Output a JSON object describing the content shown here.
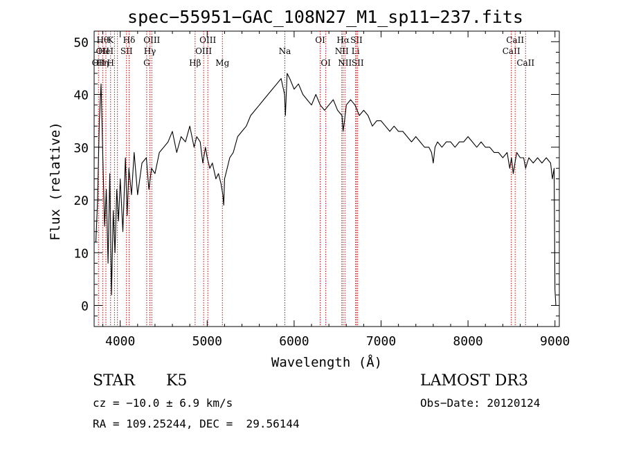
{
  "chart_data": {
    "type": "line",
    "title": "spec−55951−GAC_108N27_M1_sp11−237.fits",
    "xlabel": "Wavelength (Å)",
    "ylabel": "Flux (relative)",
    "xlim": [
      3700,
      9050
    ],
    "ylim": [
      -4,
      52
    ],
    "xticks": [
      4000,
      5000,
      6000,
      7000,
      8000,
      9000
    ],
    "xtick_labels": [
      "4000",
      "5000",
      "6000",
      "7000",
      "8000",
      "9000"
    ],
    "yticks": [
      0,
      10,
      20,
      30,
      40,
      50
    ],
    "ytick_labels": [
      "0",
      "10",
      "20",
      "30",
      "40",
      "50"
    ],
    "grid": false,
    "series": [
      {
        "color": "#000000",
        "x": [
          3720,
          3740,
          3760,
          3780,
          3800,
          3820,
          3840,
          3860,
          3880,
          3900,
          3920,
          3940,
          3960,
          3980,
          4000,
          4030,
          4060,
          4080,
          4100,
          4130,
          4160,
          4200,
          4250,
          4300,
          4330,
          4360,
          4400,
          4450,
          4500,
          4550,
          4600,
          4650,
          4700,
          4750,
          4800,
          4850,
          4880,
          4920,
          4950,
          4980,
          5000,
          5030,
          5060,
          5100,
          5130,
          5160,
          5180,
          5190,
          5200,
          5230,
          5260,
          5300,
          5350,
          5400,
          5450,
          5500,
          5550,
          5600,
          5650,
          5700,
          5750,
          5800,
          5850,
          5890,
          5900,
          5920,
          5950,
          6000,
          6050,
          6100,
          6150,
          6200,
          6250,
          6300,
          6350,
          6400,
          6450,
          6500,
          6550,
          6563,
          6580,
          6600,
          6650,
          6700,
          6750,
          6800,
          6850,
          6900,
          6950,
          7000,
          7050,
          7100,
          7150,
          7200,
          7250,
          7300,
          7350,
          7400,
          7450,
          7500,
          7550,
          7580,
          7600,
          7620,
          7650,
          7700,
          7750,
          7800,
          7850,
          7900,
          7950,
          8000,
          8050,
          8100,
          8150,
          8200,
          8250,
          8300,
          8350,
          8400,
          8450,
          8480,
          8500,
          8520,
          8540,
          8560,
          8600,
          8640,
          8662,
          8680,
          8700,
          8750,
          8800,
          8850,
          8900,
          8950,
          8970,
          8990,
          9000,
          9010
        ],
        "y": [
          12,
          20,
          35,
          42,
          28,
          15,
          22,
          8,
          25,
          2,
          18,
          10,
          22,
          16,
          24,
          14,
          28,
          17,
          26,
          21,
          29,
          21,
          27,
          28,
          22,
          26,
          25,
          29,
          30,
          31,
          33,
          29,
          32,
          31,
          34,
          30,
          32,
          31,
          27,
          30,
          28,
          26,
          27,
          24,
          25,
          23,
          21,
          19,
          24,
          26,
          28,
          29,
          32,
          33,
          34,
          36,
          37,
          38,
          39,
          40,
          41,
          42,
          43,
          40,
          36,
          44,
          43,
          41,
          42,
          40,
          39,
          38,
          40,
          38,
          37,
          38,
          39,
          37,
          36,
          33,
          35,
          38,
          39,
          38,
          36,
          37,
          36,
          34,
          35,
          35,
          34,
          33,
          34,
          33,
          33,
          32,
          31,
          32,
          31,
          30,
          30,
          29,
          27,
          30,
          31,
          30,
          31,
          31,
          30,
          31,
          31,
          32,
          31,
          30,
          31,
          30,
          30,
          29,
          29,
          28,
          29,
          26,
          28,
          25,
          27,
          29,
          28,
          28,
          26,
          27,
          28,
          27,
          28,
          27,
          28,
          27,
          24,
          26,
          3,
          0
        ]
      }
    ],
    "line_markers": [
      {
        "wl": 3750,
        "labels": [
          [
            3,
            "OII"
          ]
        ]
      },
      {
        "wl": 3798,
        "labels": [
          [
            1,
            "Hθ"
          ],
          [
            2,
            "OII"
          ],
          [
            3,
            "Hη"
          ]
        ]
      },
      {
        "wl": 3835,
        "labels": [
          [
            2,
            "HeI"
          ]
        ]
      },
      {
        "wl": 3889,
        "labels": [
          [
            1,
            "K"
          ],
          [
            3,
            "H"
          ]
        ]
      },
      {
        "wl": 3934
      },
      {
        "wl": 3968
      },
      {
        "wl": 4072,
        "labels": [
          [
            2,
            "SII"
          ]
        ]
      },
      {
        "wl": 4102,
        "labels": [
          [
            1,
            "Hδ"
          ]
        ]
      },
      {
        "wl": 4304,
        "labels": [
          [
            3,
            "G"
          ]
        ]
      },
      {
        "wl": 4341,
        "labels": [
          [
            2,
            "Hγ"
          ]
        ]
      },
      {
        "wl": 4363,
        "labels": [
          [
            1,
            "OIII"
          ]
        ]
      },
      {
        "wl": 4861,
        "labels": [
          [
            3,
            "Hβ"
          ]
        ]
      },
      {
        "wl": 4959,
        "labels": [
          [
            2,
            "OIII"
          ]
        ]
      },
      {
        "wl": 5007,
        "labels": [
          [
            1,
            "OIII"
          ]
        ]
      },
      {
        "wl": 5175,
        "labels": [
          [
            3,
            "Mg"
          ]
        ]
      },
      {
        "wl": 5893,
        "labels": [
          [
            2,
            "Na"
          ]
        ]
      },
      {
        "wl": 6300,
        "labels": [
          [
            1,
            "OI"
          ]
        ]
      },
      {
        "wl": 6364,
        "labels": [
          [
            3,
            "OI"
          ]
        ]
      },
      {
        "wl": 6548,
        "labels": [
          [
            2,
            "NII"
          ]
        ]
      },
      {
        "wl": 6563,
        "labels": [
          [
            1,
            "Hα"
          ]
        ]
      },
      {
        "wl": 6584,
        "labels": [
          [
            3,
            "NII"
          ]
        ]
      },
      {
        "wl": 6707,
        "labels": [
          [
            2,
            "Li"
          ]
        ]
      },
      {
        "wl": 6717,
        "labels": [
          [
            1,
            "SII"
          ]
        ]
      },
      {
        "wl": 6731,
        "labels": [
          [
            3,
            "SII"
          ]
        ]
      },
      {
        "wl": 8498,
        "labels": [
          [
            2,
            "CaII"
          ]
        ]
      },
      {
        "wl": 8542,
        "labels": [
          [
            1,
            "CaII"
          ]
        ]
      },
      {
        "wl": 8662,
        "labels": [
          [
            3,
            "CaII"
          ]
        ]
      }
    ],
    "marker_color": "#cc0000"
  },
  "info": {
    "object_class": "STAR",
    "subclass": "K5",
    "survey": "LAMOST DR3",
    "cz": "cz = −10.0 ± 6.9 km/s",
    "obs_date": "Obs−Date: 20120124",
    "coords": "RA = 109.25244, DEC =  29.56144"
  }
}
